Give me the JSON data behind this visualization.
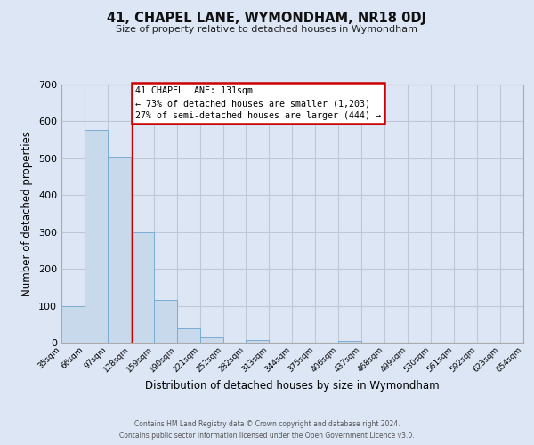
{
  "title": "41, CHAPEL LANE, WYMONDHAM, NR18 0DJ",
  "subtitle": "Size of property relative to detached houses in Wymondham",
  "xlabel": "Distribution of detached houses by size in Wymondham",
  "ylabel": "Number of detached properties",
  "bin_edges": [
    35,
    66,
    97,
    128,
    159,
    190,
    221,
    252,
    282,
    313,
    344,
    375,
    406,
    437,
    468,
    499,
    530,
    561,
    592,
    623,
    654
  ],
  "bin_labels": [
    "35sqm",
    "66sqm",
    "97sqm",
    "128sqm",
    "159sqm",
    "190sqm",
    "221sqm",
    "252sqm",
    "282sqm",
    "313sqm",
    "344sqm",
    "375sqm",
    "406sqm",
    "437sqm",
    "468sqm",
    "499sqm",
    "530sqm",
    "561sqm",
    "592sqm",
    "623sqm",
    "654sqm"
  ],
  "counts": [
    100,
    578,
    505,
    300,
    115,
    38,
    15,
    0,
    8,
    0,
    0,
    0,
    5,
    0,
    0,
    0,
    0,
    0,
    0,
    0
  ],
  "bar_facecolor": "#c9d9ec",
  "bar_edgecolor": "#7aadd4",
  "property_line_x": 131,
  "property_line_color": "#cc0000",
  "annotation_title": "41 CHAPEL LANE: 131sqm",
  "annotation_line1": "← 73% of detached houses are smaller (1,203)",
  "annotation_line2": "27% of semi-detached houses are larger (444) →",
  "annotation_box_edgecolor": "#cc0000",
  "annotation_box_facecolor": "#ffffff",
  "ylim_max": 700,
  "yticks": [
    0,
    100,
    200,
    300,
    400,
    500,
    600,
    700
  ],
  "grid_color": "#c0c8d8",
  "background_color": "#dce6f5",
  "footer_line1": "Contains HM Land Registry data © Crown copyright and database right 2024.",
  "footer_line2": "Contains public sector information licensed under the Open Government Licence v3.0."
}
